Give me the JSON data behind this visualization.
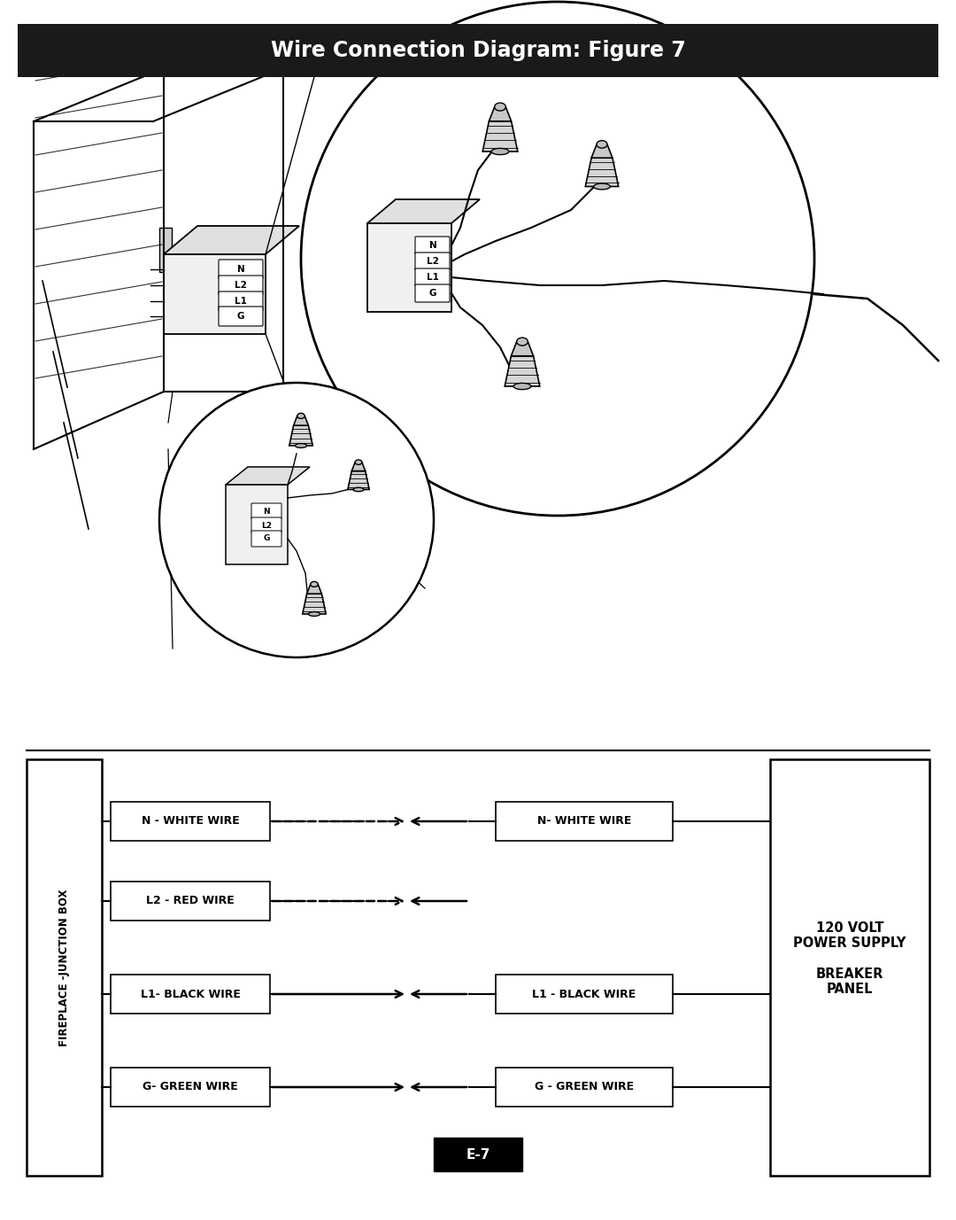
{
  "title": "Wire Connection Diagram: Figure 7",
  "page_label": "E-7",
  "background_color": "#ffffff",
  "left_box_label": "FIREPLACE -JUNCTION BOX",
  "right_box_label": "120 VOLT\nPOWER SUPPLY\n\nBREAKER\nPANEL",
  "wire_rows": [
    {
      "left_label": "N - WHITE WIRE",
      "right_label": "N- WHITE WIRE",
      "dashed": true,
      "has_right_label": true
    },
    {
      "left_label": "L2 - RED WIRE",
      "right_label": null,
      "dashed": true,
      "has_right_label": false
    },
    {
      "left_label": "L1- BLACK WIRE",
      "right_label": "L1 - BLACK WIRE",
      "dashed": false,
      "has_right_label": true
    },
    {
      "left_label": "G- GREEN WIRE",
      "right_label": "G - GREEN WIRE",
      "dashed": false,
      "has_right_label": true
    }
  ]
}
